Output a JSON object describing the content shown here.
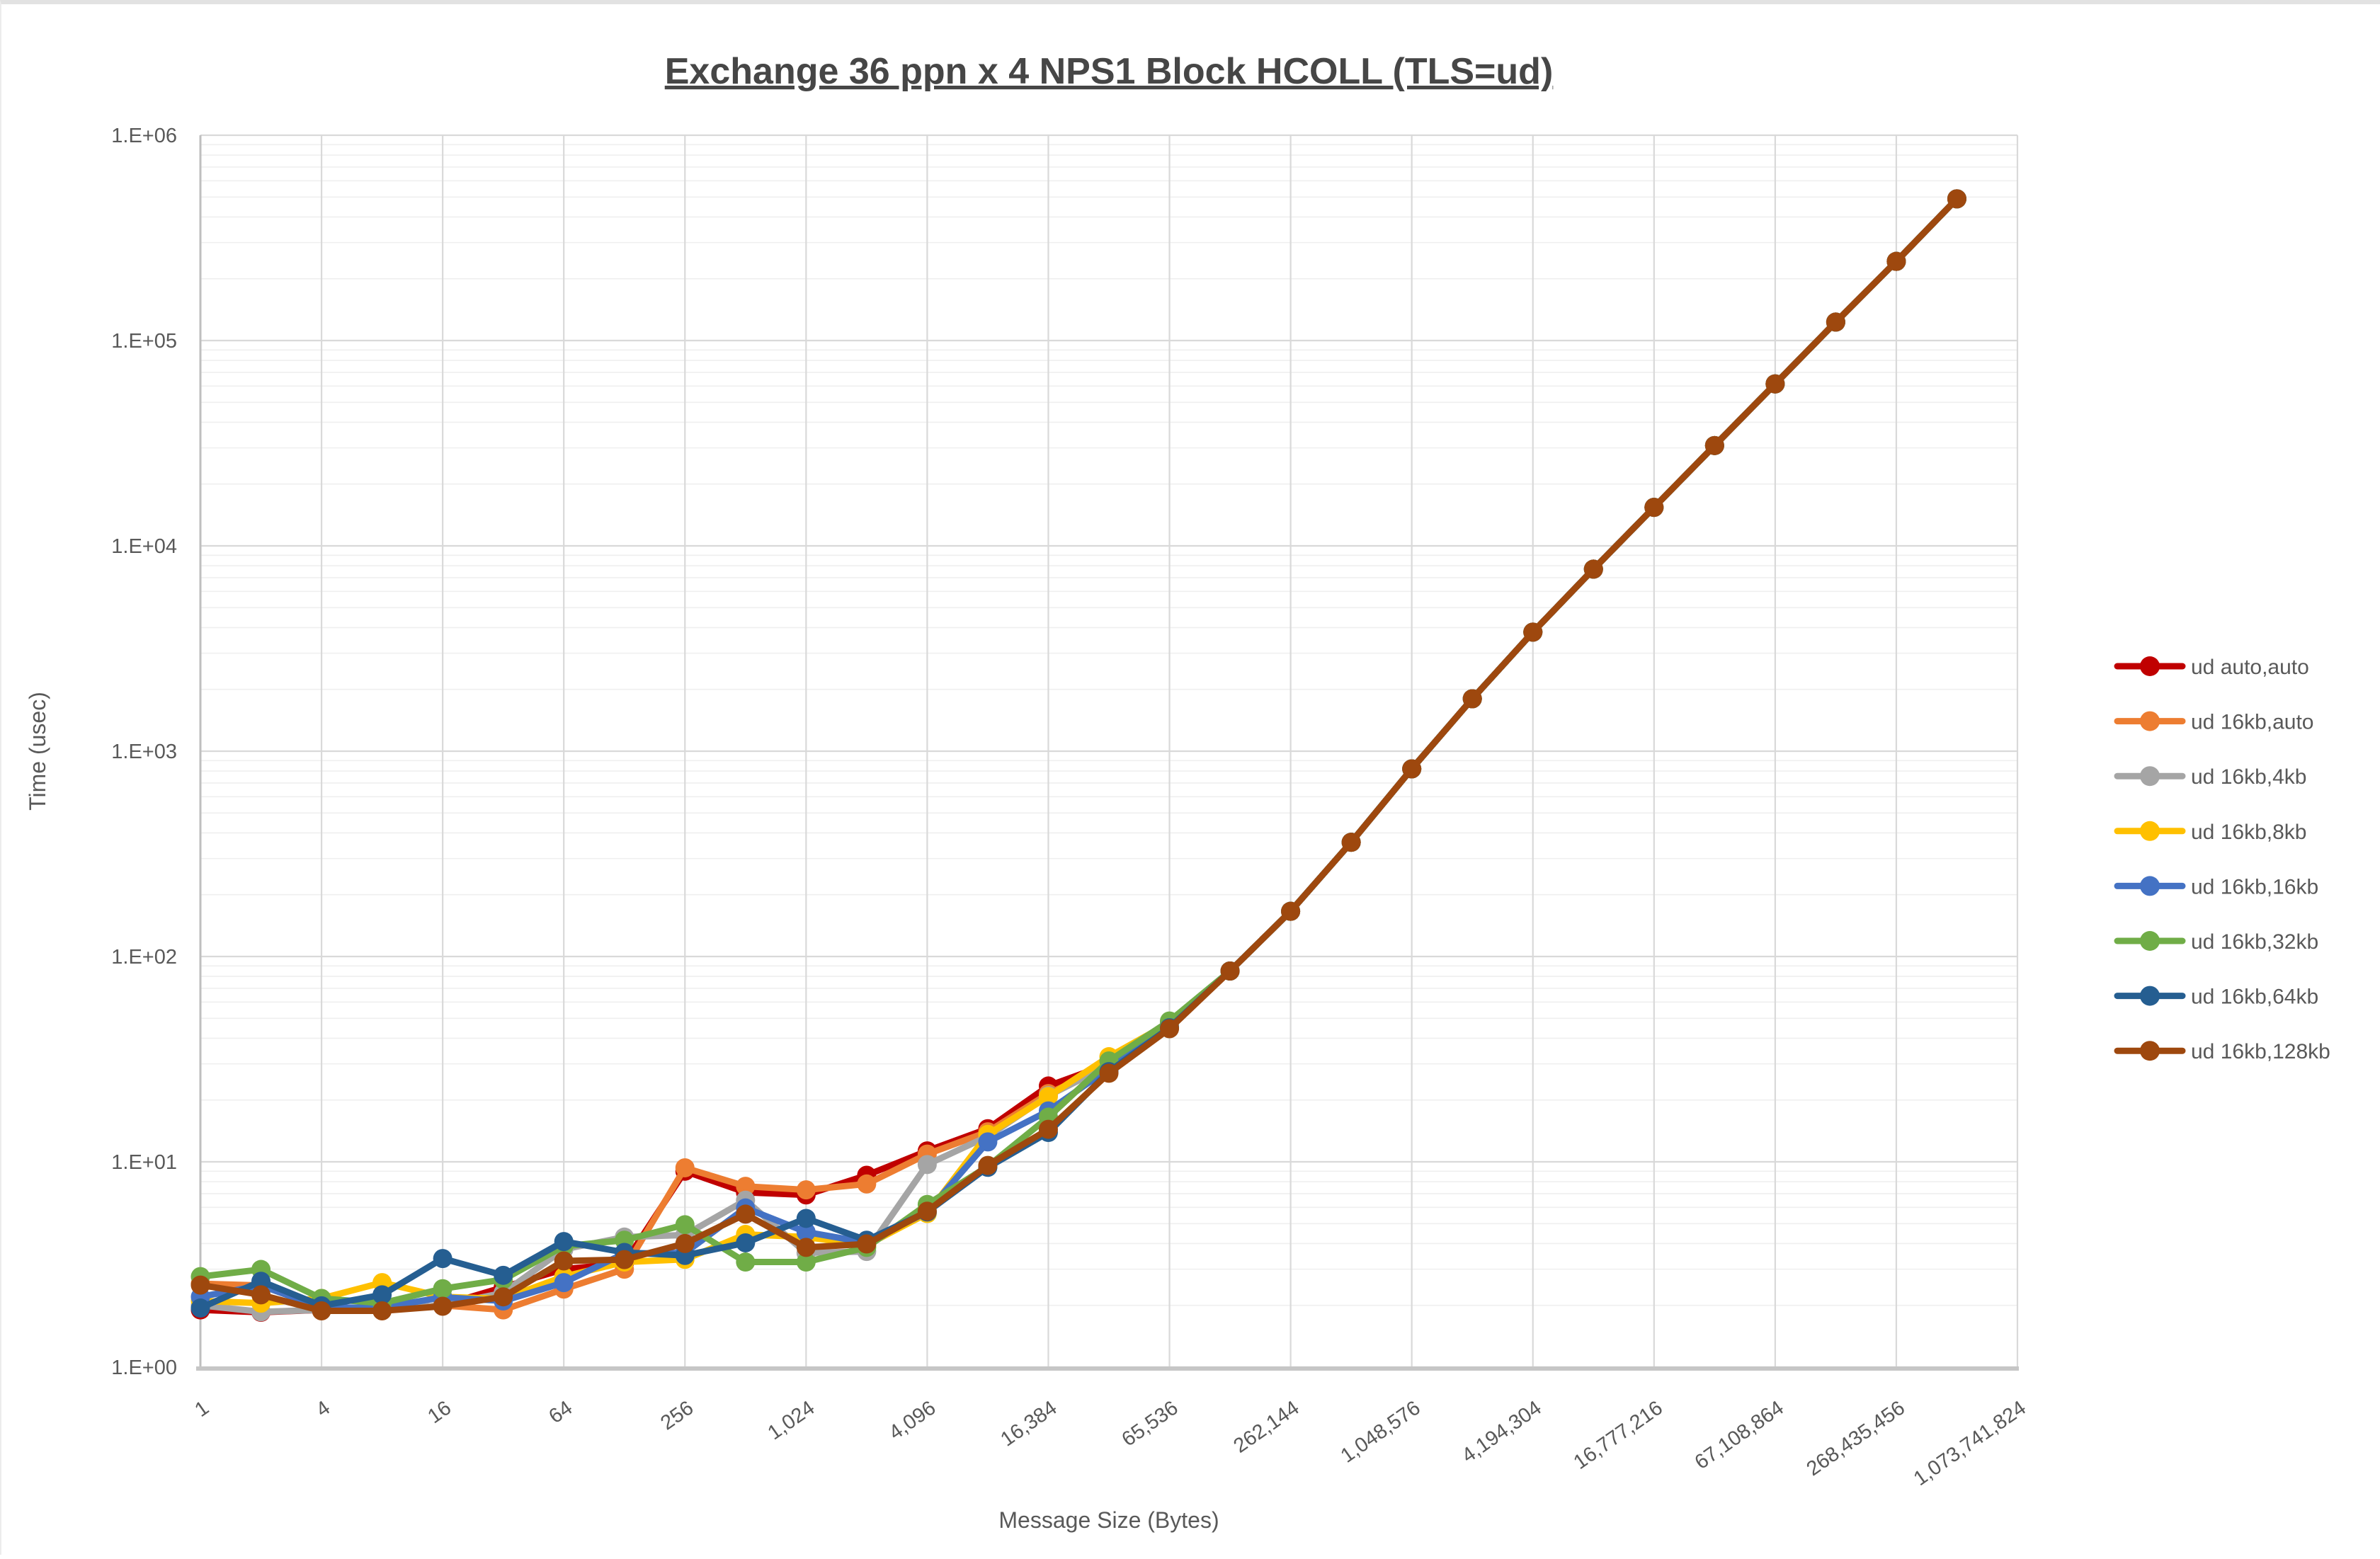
{
  "chart_data": {
    "type": "line",
    "title": "Exchange 36 ppn x 4 NPS1 Block HCOLL (TLS=ud)",
    "xlabel": "Message Size (Bytes)",
    "ylabel": "Time (usec)",
    "legend_position": "right",
    "grid": "major and minor gridlines on, log-log plot",
    "x_axis": {
      "scale": "log2 categories, tick every 4x",
      "tick_labels": [
        "1",
        "4",
        "16",
        "64",
        "256",
        "1,024",
        "4,096",
        "16,384",
        "65,536",
        "262,144",
        "1,048,576",
        "4,194,304",
        "16,777,216",
        "67,108,864",
        "268,435,456",
        "1,073,741,824"
      ]
    },
    "y_axis": {
      "scale": "log10",
      "ylim": [
        1,
        1000000
      ],
      "tick_labels": [
        "1.E+00",
        "1.E+01",
        "1.E+02",
        "1.E+03",
        "1.E+04",
        "1.E+05",
        "1.E+06"
      ]
    },
    "x": [
      1,
      2,
      4,
      8,
      16,
      32,
      64,
      128,
      256,
      512,
      1024,
      2048,
      4096,
      8192,
      16384,
      32768,
      65536,
      131072,
      262144,
      524288,
      1048576,
      2097152,
      4194304,
      8388608,
      16777216,
      33554432,
      67108864,
      134217728,
      268435456,
      536870912
    ],
    "series": [
      {
        "name": "ud auto,auto",
        "color": "#C00000",
        "values": [
          1.9,
          1.85,
          1.9,
          1.9,
          2.0,
          2.45,
          3.0,
          3.2,
          9.0,
          7.1,
          6.9,
          8.6,
          11.3,
          14.5,
          23.4,
          30,
          47,
          85,
          166,
          360,
          820,
          1800,
          3800,
          7700,
          15400,
          30800,
          61500,
          123000,
          243000,
          490000
        ]
      },
      {
        "name": "ud 16kb,auto",
        "color": "#ED7D31",
        "values": [
          2.55,
          2.5,
          1.95,
          1.9,
          2.0,
          1.9,
          2.4,
          3.0,
          9.35,
          7.6,
          7.3,
          7.8,
          10.9,
          14.0,
          21.5,
          29.5,
          46.5,
          85,
          166,
          360,
          820,
          1800,
          3800,
          7700,
          15400,
          30800,
          61500,
          123000,
          243000,
          490000
        ]
      },
      {
        "name": "ud 16kb,4kb",
        "color": "#A5A5A5",
        "values": [
          2.0,
          1.86,
          1.9,
          1.9,
          2.0,
          2.3,
          3.75,
          4.3,
          4.4,
          6.5,
          3.6,
          3.66,
          9.7,
          13.3,
          21.0,
          29.5,
          46,
          85,
          166,
          360,
          820,
          1800,
          3800,
          7700,
          15400,
          30800,
          61500,
          123000,
          243000,
          490000
        ]
      },
      {
        "name": "ud 16kb,8kb",
        "color": "#FFC000",
        "values": [
          2.1,
          2.05,
          2.16,
          2.58,
          2.2,
          2.15,
          2.76,
          3.25,
          3.35,
          4.43,
          4.3,
          3.93,
          5.6,
          13.6,
          20.8,
          32.5,
          47.5,
          85,
          166,
          360,
          820,
          1800,
          3800,
          7700,
          15400,
          30800,
          61500,
          123000,
          243000,
          490000
        ]
      },
      {
        "name": "ud 16kb,16kb",
        "color": "#4472C4",
        "values": [
          2.2,
          2.5,
          1.95,
          1.95,
          2.19,
          2.1,
          2.58,
          3.58,
          3.6,
          5.96,
          4.55,
          4.04,
          5.7,
          12.5,
          17.7,
          28.5,
          48,
          85,
          166,
          360,
          820,
          1800,
          3800,
          7700,
          15400,
          30800,
          61500,
          123000,
          243000,
          490000
        ]
      },
      {
        "name": "ud 16kb,32kb",
        "color": "#70AD47",
        "values": [
          2.76,
          2.99,
          2.16,
          2.05,
          2.41,
          2.67,
          3.88,
          4.15,
          4.94,
          3.25,
          3.25,
          3.83,
          6.2,
          9.5,
          16.5,
          31,
          48.5,
          85,
          166,
          360,
          820,
          1800,
          3800,
          7700,
          15400,
          30800,
          61500,
          123000,
          243000,
          490000
        ]
      },
      {
        "name": "ud 16kb,64kb",
        "color": "#255E91",
        "values": [
          1.94,
          2.62,
          1.99,
          2.25,
          3.38,
          2.8,
          4.09,
          3.62,
          3.5,
          4.03,
          5.3,
          4.15,
          5.7,
          9.4,
          13.9,
          27.5,
          45,
          85,
          166,
          360,
          820,
          1800,
          3800,
          7700,
          15400,
          30800,
          61500,
          123000,
          243000,
          490000
        ]
      },
      {
        "name": "ud 16kb,128kb",
        "color": "#9E480E",
        "values": [
          2.51,
          2.25,
          1.88,
          1.88,
          1.98,
          2.2,
          3.29,
          3.34,
          4.0,
          5.56,
          3.83,
          3.98,
          5.75,
          9.6,
          14.4,
          27,
          44.5,
          85,
          166,
          360,
          820,
          1800,
          3800,
          7700,
          15400,
          30800,
          61500,
          123000,
          243000,
          490000
        ]
      }
    ]
  }
}
